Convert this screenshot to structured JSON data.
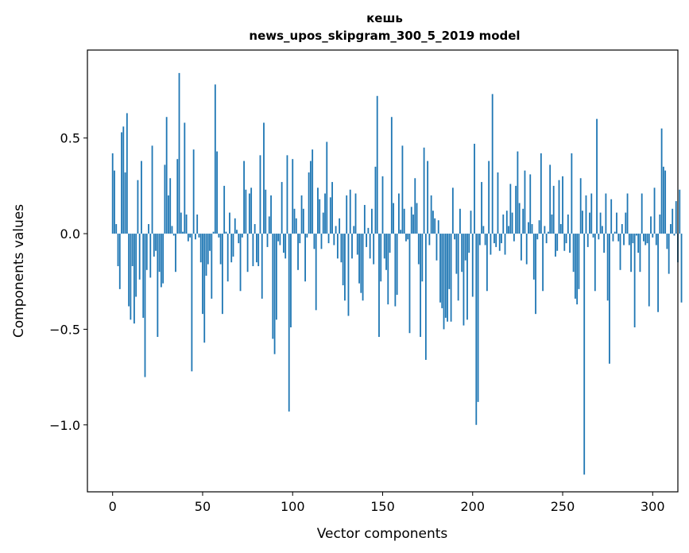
{
  "chart_data": {
    "type": "bar",
    "title_line1": "кешь",
    "title_line2": "news_upos_skipgram_300_5_2019 model",
    "xlabel": "Vector components",
    "ylabel": "Components values",
    "xlim": [
      -14,
      314
    ],
    "ylim": [
      -1.35,
      0.96
    ],
    "xticks": [
      0,
      50,
      100,
      150,
      200,
      250,
      300
    ],
    "xtick_labels": [
      "0",
      "50",
      "100",
      "150",
      "200",
      "250",
      "300"
    ],
    "yticks": [
      -1.0,
      -0.5,
      0.0,
      0.5
    ],
    "ytick_labels": [
      "−1.0",
      "−0.5",
      "0.0",
      "0.5"
    ],
    "bar_color": "#1f77b4",
    "values": [
      0.42,
      0.33,
      0.05,
      -0.17,
      -0.29,
      0.53,
      0.56,
      0.32,
      0.63,
      -0.38,
      -0.45,
      -0.17,
      -0.47,
      -0.33,
      0.28,
      -0.24,
      0.38,
      -0.44,
      -0.75,
      -0.19,
      0.05,
      -0.23,
      0.46,
      -0.12,
      -0.09,
      -0.54,
      -0.2,
      -0.28,
      -0.26,
      0.36,
      0.61,
      0.2,
      0.29,
      0.04,
      -0.01,
      -0.2,
      0.39,
      0.84,
      0.11,
      0.01,
      0.58,
      0.1,
      -0.04,
      -0.02,
      -0.72,
      0.44,
      -0.03,
      0.1,
      -0.02,
      -0.15,
      -0.42,
      -0.57,
      -0.22,
      -0.16,
      -0.09,
      -0.34,
      0.01,
      0.78,
      0.43,
      -0.02,
      -0.16,
      -0.42,
      0.25,
      0.01,
      -0.25,
      0.11,
      -0.15,
      -0.12,
      0.08,
      0.02,
      -0.05,
      -0.3,
      -0.02,
      0.38,
      0.23,
      -0.2,
      0.21,
      0.24,
      -0.17,
      0.05,
      -0.15,
      -0.17,
      0.41,
      -0.34,
      0.58,
      0.23,
      -0.07,
      0.09,
      0.2,
      -0.55,
      -0.63,
      -0.45,
      -0.04,
      -0.06,
      0.27,
      -0.1,
      -0.13,
      0.41,
      -0.93,
      -0.49,
      0.39,
      0.13,
      0.08,
      -0.19,
      -0.05,
      0.2,
      0.13,
      -0.25,
      -0.02,
      0.32,
      0.38,
      0.44,
      -0.08,
      -0.4,
      0.24,
      0.18,
      -0.08,
      0.11,
      0.21,
      0.48,
      -0.05,
      0.19,
      0.27,
      -0.06,
      0.04,
      -0.13,
      0.08,
      -0.15,
      -0.27,
      -0.35,
      0.2,
      -0.43,
      0.23,
      -0.13,
      0.04,
      0.21,
      -0.11,
      -0.26,
      -0.31,
      -0.35,
      0.15,
      -0.07,
      0.03,
      -0.13,
      0.13,
      -0.16,
      0.35,
      0.72,
      -0.54,
      -0.25,
      0.3,
      -0.13,
      -0.19,
      -0.37,
      -0.1,
      0.61,
      0.16,
      -0.38,
      -0.32,
      0.21,
      0.02,
      0.46,
      0.13,
      -0.04,
      -0.03,
      -0.52,
      0.14,
      0.1,
      0.29,
      0.16,
      -0.16,
      -0.54,
      -0.25,
      0.45,
      -0.66,
      0.38,
      -0.06,
      0.2,
      0.12,
      0.08,
      -0.14,
      0.07,
      -0.36,
      -0.39,
      -0.5,
      -0.44,
      -0.46,
      -0.29,
      -0.46,
      0.24,
      -0.03,
      -0.21,
      -0.35,
      0.13,
      -0.2,
      -0.48,
      -0.14,
      -0.45,
      -0.1,
      0.12,
      -0.33,
      0.47,
      -1.0,
      -0.88,
      -0.06,
      0.27,
      0.04,
      -0.06,
      -0.3,
      0.38,
      -0.11,
      0.73,
      -0.05,
      -0.07,
      0.32,
      -0.09,
      -0.05,
      0.1,
      -0.11,
      0.12,
      0.04,
      0.26,
      0.11,
      -0.04,
      0.25,
      0.43,
      0.16,
      -0.14,
      0.13,
      0.33,
      -0.16,
      0.06,
      0.31,
      0.05,
      -0.24,
      -0.42,
      -0.03,
      0.07,
      0.42,
      -0.3,
      0.04,
      -0.05,
      0.01,
      0.36,
      0.1,
      0.25,
      -0.12,
      -0.09,
      0.28,
      0.05,
      0.3,
      -0.09,
      -0.05,
      0.1,
      -0.1,
      0.42,
      -0.2,
      -0.34,
      -0.37,
      -0.29,
      0.29,
      0.12,
      -1.26,
      0.2,
      -0.07,
      0.11,
      0.21,
      -0.02,
      -0.3,
      0.6,
      -0.03,
      0.11,
      0.04,
      -0.1,
      0.21,
      -0.35,
      -0.68,
      0.18,
      -0.04,
      0.01,
      0.11,
      -0.04,
      -0.19,
      0.05,
      -0.06,
      0.11,
      0.21,
      -0.06,
      -0.2,
      -0.05,
      -0.49,
      -0.01,
      -0.1,
      -0.2,
      0.21,
      -0.04,
      -0.06,
      -0.05,
      -0.38,
      0.09,
      -0.02,
      0.24,
      -0.06,
      -0.41,
      0.1,
      0.55,
      0.35,
      0.33,
      -0.08,
      -0.21,
      0.05,
      0.13,
      -0.01,
      0.17,
      -0.15,
      0.23,
      -0.36
    ]
  }
}
